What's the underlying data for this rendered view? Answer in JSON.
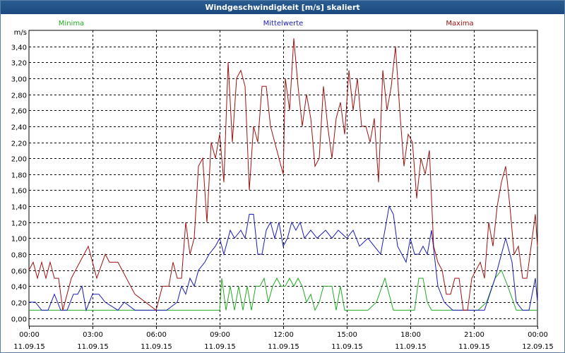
{
  "window": {
    "title": "Windgeschwindigkeit [m/s] skaliert"
  },
  "chart_data": {
    "type": "line",
    "title": "Windgeschwindigkeit [m/s] skaliert",
    "ylabel": "m/s",
    "ylim": [
      -0.1,
      3.6
    ],
    "y_ticks": [
      "0,00",
      "0,20",
      "0,40",
      "0,60",
      "0,80",
      "1,00",
      "1,20",
      "1,40",
      "1,60",
      "1,80",
      "2,00",
      "2,20",
      "2,40",
      "2,60",
      "2,80",
      "3,00",
      "3,20",
      "3,40"
    ],
    "x_ticks": [
      {
        "time": "00:00",
        "date": "11.09.15"
      },
      {
        "time": "03:00",
        "date": "11.09.15"
      },
      {
        "time": "06:00",
        "date": "11.09.15"
      },
      {
        "time": "09:00",
        "date": "11.09.15"
      },
      {
        "time": "12:00",
        "date": "11.09.15"
      },
      {
        "time": "15:00",
        "date": "11.09.15"
      },
      {
        "time": "18:00",
        "date": "11.09.15"
      },
      {
        "time": "21:00",
        "date": "11.09.15"
      },
      {
        "time": "00:00",
        "date": "12.09.15"
      }
    ],
    "xlim_hours": [
      0,
      24
    ],
    "grid": true,
    "legend_position": "top",
    "series": [
      {
        "name": "Minima",
        "color": "#22aa22",
        "hours": [
          0,
          9,
          9.1,
          9.3,
          9.5,
          9.7,
          9.9,
          10.1,
          10.3,
          10.5,
          10.7,
          10.9,
          11.1,
          11.3,
          11.5,
          11.7,
          11.9,
          12.1,
          12.3,
          12.5,
          12.7,
          12.9,
          13.1,
          13.3,
          13.5,
          13.7,
          13.9,
          14.1,
          14.3,
          14.5,
          14.7,
          14.9,
          15.1,
          16,
          16.4,
          16.8,
          17.2,
          17.4,
          17.8,
          18.2,
          18.4,
          18.6,
          18.8,
          19,
          20.5,
          20.8,
          21.2,
          21.6,
          22,
          22.3,
          22.6,
          23,
          23.5,
          24
        ],
        "values": [
          0.1,
          0.1,
          0.5,
          0.1,
          0.4,
          0.1,
          0.4,
          0.1,
          0.4,
          0.1,
          0.4,
          0.4,
          0.5,
          0.2,
          0.4,
          0.5,
          0.4,
          0.4,
          0.5,
          0.4,
          0.5,
          0.4,
          0.2,
          0.3,
          0.1,
          0.2,
          0.4,
          0.4,
          0.4,
          0.1,
          0.4,
          0.1,
          0.1,
          0.1,
          0.2,
          0.5,
          0.1,
          0.1,
          0.1,
          0.1,
          0.5,
          0.5,
          0.2,
          0.1,
          0.1,
          0.1,
          0.1,
          0.2,
          0.5,
          0.6,
          0.4,
          0.1,
          0.1,
          0.1
        ]
      },
      {
        "name": "Mittelwerte",
        "color": "#1a1ab4",
        "hours": [
          0,
          0.3,
          0.6,
          0.9,
          1.2,
          1.5,
          1.8,
          2.1,
          2.3,
          2.5,
          2.7,
          3,
          3.3,
          3.6,
          4.2,
          4.5,
          5,
          6,
          6.5,
          7,
          7.2,
          7.4,
          7.6,
          7.8,
          8,
          8.3,
          8.5,
          8.8,
          9,
          9.2,
          9.5,
          9.7,
          10,
          10.2,
          10.4,
          10.6,
          10.8,
          11,
          11.2,
          11.4,
          11.6,
          11.8,
          12,
          12.2,
          12.4,
          12.6,
          12.8,
          13,
          13.3,
          13.6,
          14,
          14.3,
          14.6,
          15,
          15.3,
          15.6,
          16,
          16.3,
          16.6,
          17,
          17.2,
          17.4,
          17.6,
          17.8,
          18,
          18.2,
          18.4,
          18.6,
          18.8,
          19,
          19.3,
          19.6,
          20,
          20.5,
          21,
          21.5,
          22,
          22.5,
          22.8,
          23,
          23.3,
          23.6,
          23.9,
          24
        ],
        "values": [
          0.2,
          0.2,
          0.1,
          0.1,
          0.3,
          0.1,
          0.1,
          0.3,
          0.3,
          0.4,
          0.1,
          0.3,
          0.3,
          0.2,
          0.1,
          0.2,
          0.1,
          0.1,
          0.1,
          0.2,
          0.4,
          0.3,
          0.5,
          0.4,
          0.6,
          0.7,
          0.8,
          0.9,
          1.0,
          0.8,
          1.1,
          1.0,
          1.1,
          1.0,
          1.3,
          1.3,
          0.8,
          0.8,
          1.1,
          1.2,
          1.0,
          1.2,
          0.9,
          1.0,
          1.2,
          1.1,
          1.2,
          1.0,
          1.1,
          1.0,
          1.1,
          1.0,
          1.1,
          1.0,
          1.1,
          0.9,
          1.0,
          0.9,
          0.8,
          1.4,
          1.3,
          0.9,
          0.8,
          0.7,
          1.0,
          0.8,
          0.8,
          0.9,
          0.8,
          1.1,
          0.4,
          0.2,
          0.1,
          0.1,
          0.1,
          0.1,
          0.5,
          1.0,
          0.7,
          0.2,
          0.1,
          0.1,
          0.5,
          0.2
        ]
      },
      {
        "name": "Maxima",
        "color": "#a01010",
        "hours": [
          0,
          0.2,
          0.4,
          0.6,
          0.8,
          1,
          1.2,
          1.4,
          1.6,
          2,
          2.2,
          2.4,
          2.8,
          3,
          3.2,
          3.6,
          3.8,
          4,
          4.2,
          4.4,
          5,
          6,
          6.3,
          6.6,
          6.8,
          7,
          7.2,
          7.4,
          7.6,
          7.8,
          8,
          8.2,
          8.4,
          8.6,
          8.8,
          9,
          9.2,
          9.4,
          9.6,
          9.8,
          10,
          10.2,
          10.4,
          10.6,
          10.8,
          11,
          11.2,
          11.4,
          11.6,
          11.8,
          12,
          12.1,
          12.3,
          12.5,
          12.7,
          12.9,
          13.1,
          13.3,
          13.5,
          13.7,
          13.9,
          14.1,
          14.3,
          14.5,
          14.7,
          14.9,
          15.1,
          15.3,
          15.5,
          15.7,
          15.9,
          16.1,
          16.3,
          16.5,
          16.7,
          16.9,
          17.1,
          17.3,
          17.5,
          17.7,
          17.9,
          18.1,
          18.3,
          18.5,
          18.7,
          18.9,
          19.1,
          19.3,
          19.5,
          19.7,
          19.9,
          20.1,
          20.3,
          20.5,
          20.7,
          20.9,
          21.1,
          21.3,
          21.5,
          21.7,
          21.9,
          22.1,
          22.3,
          22.5,
          22.7,
          22.9,
          23.1,
          23.3,
          23.5,
          23.7,
          23.9,
          24
        ],
        "values": [
          0.6,
          0.7,
          0.5,
          0.7,
          0.5,
          0.7,
          0.5,
          0.5,
          0.1,
          0.5,
          0.6,
          0.7,
          0.9,
          0.7,
          0.5,
          0.8,
          0.7,
          0.7,
          0.7,
          0.6,
          0.3,
          0.1,
          0.4,
          0.4,
          0.7,
          0.5,
          0.5,
          1.2,
          0.8,
          1.0,
          1.9,
          2.0,
          1.2,
          2.2,
          2.0,
          2.3,
          1.7,
          3.2,
          2.2,
          3.0,
          3.1,
          2.9,
          1.6,
          2.4,
          2.2,
          2.9,
          2.9,
          2.4,
          2.2,
          2.0,
          1.8,
          3.0,
          2.6,
          3.5,
          2.9,
          2.4,
          2.8,
          2.5,
          1.9,
          2.0,
          2.9,
          2.4,
          2.0,
          2.5,
          2.7,
          2.3,
          3.1,
          2.6,
          3.0,
          2.4,
          2.4,
          2.2,
          2.5,
          1.7,
          3.1,
          2.6,
          2.9,
          3.4,
          2.6,
          1.9,
          2.3,
          2.2,
          1.5,
          2.0,
          1.8,
          2.1,
          0.9,
          0.7,
          0.6,
          0.3,
          0.3,
          0.5,
          0.5,
          0.1,
          0.1,
          0.5,
          0.6,
          0.7,
          0.5,
          1.2,
          0.9,
          1.4,
          1.7,
          1.9,
          1.4,
          0.8,
          0.9,
          0.5,
          0.5,
          0.9,
          1.3,
          0.9
        ]
      }
    ]
  }
}
